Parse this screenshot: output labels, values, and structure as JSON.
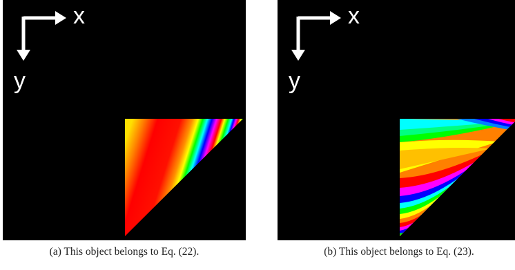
{
  "panels": [
    {
      "id": "a",
      "axes": {
        "x_label": "x",
        "y_label": "y"
      },
      "caption": "(a)  This object belongs to Eq. (22)."
    },
    {
      "id": "b",
      "axes": {
        "x_label": "x",
        "y_label": "y"
      },
      "caption": "(b)  This object belongs to Eq. (23)."
    }
  ],
  "colors": {
    "background": "#000000",
    "axes": "#ffffff",
    "spectrum": [
      "#ff0000",
      "#ff8000",
      "#ffff00",
      "#00ff00",
      "#00ffff",
      "#0000ff",
      "#ff00ff",
      "#ff0000"
    ]
  }
}
